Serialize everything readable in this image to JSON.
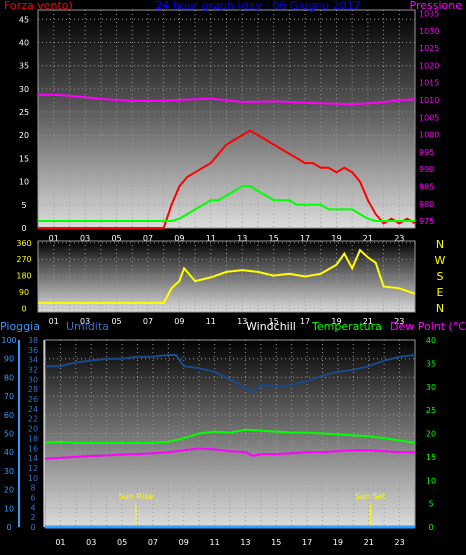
{
  "chart_data": [
    {
      "type": "line",
      "title": "24 hour graph (day : 06 Giugno 2017",
      "left_label": "Forza vento)",
      "right_label": "Pressione",
      "x_ticks": [
        "01",
        "03",
        "05",
        "07",
        "09",
        "11",
        "13",
        "15",
        "17",
        "19",
        "21",
        "23"
      ],
      "left_axis": {
        "ticks": [
          "0",
          "5",
          "10",
          "15",
          "20",
          "25",
          "30",
          "35",
          "40",
          "45"
        ],
        "ylim": [
          0,
          47
        ]
      },
      "right_axis": {
        "ticks": [
          "975",
          "980",
          "985",
          "990",
          "995",
          "1000",
          "1005",
          "1010",
          "1015",
          "1020",
          "1025",
          "1030",
          "1035"
        ],
        "ylim": [
          973,
          1036
        ]
      },
      "series": [
        {
          "name": "Pressione",
          "color": "#ff00ff",
          "axis": "right",
          "x": [
            0,
            1,
            2,
            3,
            4,
            5,
            6,
            7,
            8,
            9,
            10,
            11,
            12,
            13,
            14,
            15,
            16,
            17,
            18,
            19,
            20,
            21,
            22,
            23,
            24
          ],
          "values": [
            1011.5,
            1011.5,
            1011.2,
            1010.8,
            1010.3,
            1010,
            1009.8,
            1009.7,
            1009.8,
            1010,
            1010.2,
            1010.4,
            1009.9,
            1009.4,
            1009.5,
            1009.6,
            1009.4,
            1009.2,
            1009,
            1008.9,
            1008.8,
            1009,
            1009.4,
            1009.9,
            1010.2
          ]
        },
        {
          "name": "Raffica",
          "color": "#ff0000",
          "axis": "left",
          "x": [
            0,
            1,
            2,
            3,
            4,
            5,
            6,
            7,
            8,
            8.5,
            9,
            9.5,
            10,
            10.5,
            11,
            11.5,
            12,
            12.5,
            13,
            13.5,
            14,
            14.5,
            15,
            15.5,
            16,
            16.5,
            17,
            17.5,
            18,
            18.5,
            19,
            19.5,
            20,
            20.5,
            21,
            21.5,
            22,
            22.5,
            23,
            23.5,
            24
          ],
          "values": [
            0,
            0,
            0,
            0,
            0,
            0,
            0,
            0,
            0,
            5,
            9,
            11,
            12,
            13,
            14,
            16,
            18,
            19,
            20,
            21,
            20,
            19,
            18,
            17,
            16,
            15,
            14,
            14,
            13,
            13,
            12,
            13,
            12,
            10,
            6,
            3,
            1,
            2,
            1,
            2,
            1
          ]
        },
        {
          "name": "Vento medio",
          "color": "#00ff00",
          "axis": "left",
          "x": [
            0,
            1,
            2,
            3,
            4,
            5,
            6,
            7,
            8,
            8.5,
            9,
            9.5,
            10,
            10.5,
            11,
            11.5,
            12,
            12.5,
            13,
            13.5,
            14,
            14.5,
            15,
            15.5,
            16,
            16.5,
            17,
            17.5,
            18,
            18.5,
            19,
            19.5,
            20,
            20.5,
            21,
            21.5,
            22,
            22.5,
            23,
            23.5,
            24
          ],
          "values": [
            1.5,
            1.5,
            1.5,
            1.5,
            1.5,
            1.5,
            1.5,
            1.5,
            1.5,
            1.5,
            2,
            3,
            4,
            5,
            6,
            6,
            7,
            8,
            9,
            9,
            8,
            7,
            6,
            6,
            6,
            5,
            5,
            5,
            5,
            4,
            4,
            4,
            4,
            3,
            2,
            1.5,
            1.5,
            1.5,
            1.5,
            1.5,
            1.5
          ]
        }
      ]
    },
    {
      "type": "line",
      "title": "",
      "left_axis": {
        "ticks": [
          "0",
          "90",
          "180",
          "270",
          "360"
        ],
        "ylim": [
          -20,
          370
        ]
      },
      "compass": [
        "N",
        "W",
        "S",
        "E",
        "N"
      ],
      "x_ticks": [
        "01",
        "03",
        "05",
        "07",
        "09",
        "11",
        "13",
        "15",
        "17",
        "19",
        "21",
        "23"
      ],
      "series": [
        {
          "name": "Direzione vento",
          "color": "#ffff00",
          "x": [
            0,
            1,
            2,
            3,
            4,
            5,
            6,
            7,
            8,
            8.5,
            9,
            9.3,
            9.5,
            10,
            11,
            12,
            13,
            14,
            15,
            16,
            17,
            18,
            19,
            19.5,
            20,
            20.5,
            21,
            21.5,
            22,
            23,
            24
          ],
          "values": [
            30,
            30,
            30,
            30,
            30,
            30,
            30,
            30,
            30,
            110,
            150,
            220,
            200,
            150,
            170,
            200,
            210,
            200,
            180,
            190,
            175,
            190,
            240,
            300,
            220,
            320,
            280,
            250,
            120,
            110,
            80
          ]
        }
      ]
    },
    {
      "type": "line",
      "title": "",
      "header_labels": [
        "Pioggia",
        "Umidita",
        "Windchill",
        "Temperatura",
        "Dew Point (°C)"
      ],
      "header_colors": [
        "#2e9bff",
        "#3c6ec8",
        "#ffffff",
        "#00ff00",
        "#ff00ff"
      ],
      "rain_axis": {
        "ticks": [
          "0",
          "10",
          "20",
          "30",
          "40",
          "50",
          "60",
          "70",
          "80",
          "90",
          "100"
        ],
        "ylim": [
          0,
          100
        ]
      },
      "humidity_axis": {
        "ticks": [
          "0",
          "2",
          "4",
          "6",
          "8",
          "10",
          "12",
          "14",
          "16",
          "18",
          "20",
          "22",
          "24",
          "26",
          "28",
          "30",
          "32",
          "34",
          "36",
          "38"
        ],
        "ylim": [
          0,
          38
        ]
      },
      "temp_axis": {
        "ticks": [
          "0",
          "5",
          "10",
          "15",
          "20",
          "25",
          "30",
          "35",
          "40"
        ],
        "ylim": [
          0,
          40
        ]
      },
      "x_ticks": [
        "01",
        "03",
        "05",
        "07",
        "09",
        "11",
        "13",
        "15",
        "17",
        "19",
        "21",
        "23"
      ],
      "annotations": [
        {
          "text": "Sun Rise",
          "x": 5.9
        },
        {
          "text": "Sun Set",
          "x": 21.1
        }
      ],
      "series": [
        {
          "name": "Umidita",
          "color": "#1a4a8a",
          "axis": "humidity",
          "x": [
            0,
            1,
            2,
            3,
            4,
            5,
            6,
            7,
            8,
            8.5,
            9,
            10,
            11,
            12,
            12.5,
            13,
            13.5,
            14,
            15,
            16,
            17,
            18,
            19,
            20,
            21,
            22,
            23,
            24
          ],
          "values": [
            86,
            86,
            88,
            89,
            90,
            90,
            91,
            91,
            92,
            92,
            86,
            85,
            83,
            79,
            77,
            74,
            72,
            76,
            75,
            76,
            78,
            81,
            83,
            84,
            86,
            89,
            91,
            92
          ]
        },
        {
          "name": "Temperatura",
          "color": "#00ff00",
          "axis": "temp",
          "x": [
            0,
            1,
            2,
            3,
            4,
            5,
            6,
            7,
            8,
            9,
            10,
            11,
            12,
            13,
            14,
            15,
            16,
            17,
            18,
            19,
            20,
            21,
            22,
            23,
            24
          ],
          "values": [
            18,
            18.2,
            18,
            18,
            18,
            18,
            18,
            18,
            18.2,
            19,
            20,
            20.4,
            20.2,
            20.8,
            20.6,
            20.4,
            20.2,
            20.2,
            20,
            19.8,
            19.6,
            19.4,
            19,
            18.5,
            18
          ]
        },
        {
          "name": "Dew Point",
          "color": "#ff00ff",
          "axis": "temp",
          "x": [
            0,
            1,
            2,
            3,
            4,
            5,
            6,
            7,
            8,
            9,
            10,
            11,
            12,
            13,
            13.5,
            14,
            15,
            16,
            17,
            18,
            19,
            20,
            21,
            22,
            23,
            24
          ],
          "values": [
            14.6,
            14.8,
            15,
            15.2,
            15.3,
            15.5,
            15.6,
            15.8,
            16,
            16.4,
            16.8,
            16.6,
            16.2,
            16,
            15.2,
            15.6,
            15.6,
            15.8,
            16,
            16,
            16.2,
            16.4,
            16.4,
            16.2,
            16,
            16
          ]
        },
        {
          "name": "Pioggia",
          "color": "#2e9bff",
          "axis": "rain",
          "x": [
            0,
            24
          ],
          "values": [
            0,
            0
          ]
        }
      ]
    }
  ]
}
